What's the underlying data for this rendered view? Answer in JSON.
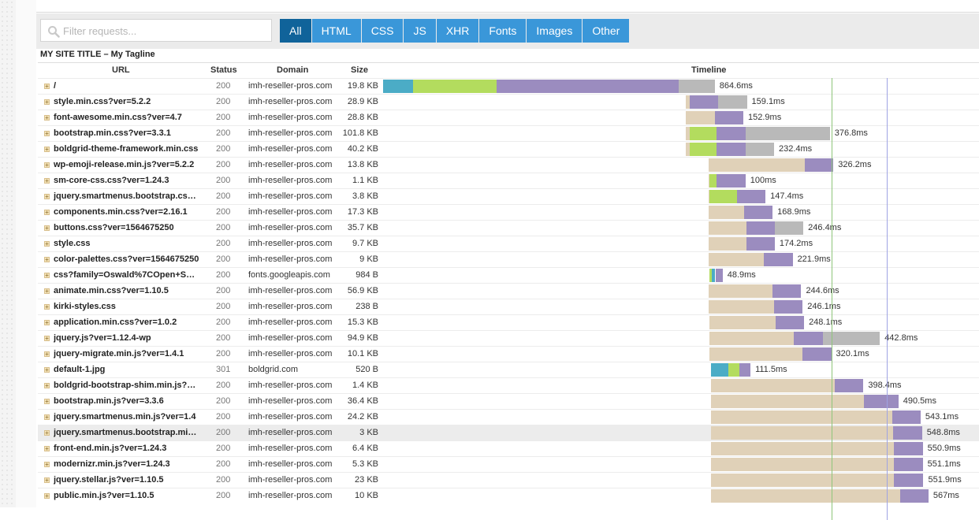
{
  "filter": {
    "placeholder": "Filter requests..."
  },
  "tabs": [
    {
      "label": "All",
      "active": true
    },
    {
      "label": "HTML",
      "active": false
    },
    {
      "label": "CSS",
      "active": false
    },
    {
      "label": "JS",
      "active": false
    },
    {
      "label": "XHR",
      "active": false
    },
    {
      "label": "Fonts",
      "active": false
    },
    {
      "label": "Images",
      "active": false
    },
    {
      "label": "Other",
      "active": false
    }
  ],
  "site_title": "MY SITE TITLE – My Tagline",
  "columns": {
    "url": "URL",
    "status": "Status",
    "domain": "Domain",
    "size": "Size",
    "timeline": "Timeline"
  },
  "colors": {
    "dns": "#4bacc6",
    "connect": "#b3dc5e",
    "blocked": "#e0d1b8",
    "wait": "#9b8cbf",
    "receive": "#b9b9b9",
    "active_tab": "#10639a",
    "tab": "#3a97d9",
    "dom_line": "#8ec57a",
    "load_line": "#9fa3e3"
  },
  "timeline": {
    "total_ms": 1090,
    "dom_loaded_ms": 864,
    "load_ms": 894
  },
  "requests": [
    {
      "url": "/",
      "status": "200",
      "domain": "imh-reseller-pros.com",
      "size": "19.8 KB",
      "duration": "864.6ms",
      "highlight": false,
      "segments": [
        {
          "phase": "dns",
          "start_ms": 0,
          "ms": 42
        },
        {
          "phase": "connect",
          "start_ms": 42,
          "ms": 117
        },
        {
          "phase": "wait",
          "start_ms": 159,
          "ms": 255
        },
        {
          "phase": "receive",
          "start_ms": 414,
          "ms": 50
        }
      ]
    },
    {
      "url": "style.min.css?ver=5.2.2",
      "status": "200",
      "domain": "imh-reseller-pros.com",
      "size": "28.9 KB",
      "duration": "159.1ms",
      "highlight": false,
      "segments": [
        {
          "phase": "blocked",
          "start_ms": 424,
          "ms": 5
        },
        {
          "phase": "wait",
          "start_ms": 429,
          "ms": 40
        },
        {
          "phase": "receive",
          "start_ms": 469,
          "ms": 40
        }
      ]
    },
    {
      "url": "font-awesome.min.css?ver=4.7",
      "status": "200",
      "domain": "imh-reseller-pros.com",
      "size": "28.8 KB",
      "duration": "152.9ms",
      "highlight": false,
      "segments": [
        {
          "phase": "blocked",
          "start_ms": 424,
          "ms": 40
        },
        {
          "phase": "wait",
          "start_ms": 464,
          "ms": 40
        }
      ]
    },
    {
      "url": "bootstrap.min.css?ver=3.3.1",
      "status": "200",
      "domain": "imh-reseller-pros.com",
      "size": "101.8 KB",
      "duration": "376.8ms",
      "highlight": false,
      "segments": [
        {
          "phase": "blocked",
          "start_ms": 424,
          "ms": 5
        },
        {
          "phase": "connect",
          "start_ms": 429,
          "ms": 38
        },
        {
          "phase": "wait",
          "start_ms": 467,
          "ms": 40
        },
        {
          "phase": "receive",
          "start_ms": 507,
          "ms": 118
        }
      ]
    },
    {
      "url": "boldgrid-theme-framework.min.css",
      "status": "200",
      "domain": "imh-reseller-pros.com",
      "size": "40.2 KB",
      "duration": "232.4ms",
      "highlight": false,
      "segments": [
        {
          "phase": "blocked",
          "start_ms": 424,
          "ms": 5
        },
        {
          "phase": "connect",
          "start_ms": 429,
          "ms": 38
        },
        {
          "phase": "wait",
          "start_ms": 467,
          "ms": 40
        },
        {
          "phase": "receive",
          "start_ms": 507,
          "ms": 40
        }
      ]
    },
    {
      "url": "wp-emoji-release.min.js?ver=5.2.2",
      "status": "200",
      "domain": "imh-reseller-pros.com",
      "size": "13.8 KB",
      "duration": "326.2ms",
      "highlight": false,
      "segments": [
        {
          "phase": "blocked",
          "start_ms": 455,
          "ms": 135
        },
        {
          "phase": "wait",
          "start_ms": 590,
          "ms": 40
        }
      ]
    },
    {
      "url": "sm-core-css.css?ver=1.24.3",
      "status": "200",
      "domain": "imh-reseller-pros.com",
      "size": "1.1 KB",
      "duration": "100ms",
      "highlight": false,
      "segments": [
        {
          "phase": "blocked",
          "start_ms": 455,
          "ms": 2
        },
        {
          "phase": "connect",
          "start_ms": 457,
          "ms": 10
        },
        {
          "phase": "wait",
          "start_ms": 467,
          "ms": 40
        }
      ]
    },
    {
      "url": "jquery.smartmenus.bootstrap.css?ver=1.24.3",
      "status": "200",
      "domain": "imh-reseller-pros.com",
      "size": "3.8 KB",
      "duration": "147.4ms",
      "highlight": false,
      "segments": [
        {
          "phase": "blocked",
          "start_ms": 455,
          "ms": 2
        },
        {
          "phase": "connect",
          "start_ms": 457,
          "ms": 38
        },
        {
          "phase": "wait",
          "start_ms": 495,
          "ms": 40
        }
      ]
    },
    {
      "url": "components.min.css?ver=2.16.1",
      "status": "200",
      "domain": "imh-reseller-pros.com",
      "size": "17.3 KB",
      "duration": "168.9ms",
      "highlight": false,
      "segments": [
        {
          "phase": "blocked",
          "start_ms": 455,
          "ms": 50
        },
        {
          "phase": "wait",
          "start_ms": 505,
          "ms": 40
        }
      ]
    },
    {
      "url": "buttons.css?ver=1564675250",
      "status": "200",
      "domain": "imh-reseller-pros.com",
      "size": "35.7 KB",
      "duration": "246.4ms",
      "highlight": false,
      "segments": [
        {
          "phase": "blocked",
          "start_ms": 455,
          "ms": 53
        },
        {
          "phase": "wait",
          "start_ms": 508,
          "ms": 40
        },
        {
          "phase": "receive",
          "start_ms": 548,
          "ms": 40
        }
      ]
    },
    {
      "url": "style.css",
      "status": "200",
      "domain": "imh-reseller-pros.com",
      "size": "9.7 KB",
      "duration": "174.2ms",
      "highlight": false,
      "segments": [
        {
          "phase": "blocked",
          "start_ms": 455,
          "ms": 53
        },
        {
          "phase": "wait",
          "start_ms": 508,
          "ms": 40
        }
      ]
    },
    {
      "url": "color-palettes.css?ver=1564675250",
      "status": "200",
      "domain": "imh-reseller-pros.com",
      "size": "9 KB",
      "duration": "221.9ms",
      "highlight": false,
      "segments": [
        {
          "phase": "blocked",
          "start_ms": 455,
          "ms": 78
        },
        {
          "phase": "wait",
          "start_ms": 533,
          "ms": 40
        }
      ]
    },
    {
      "url": "css?family=Oswald%7COpen+Sans:400,700",
      "status": "200",
      "domain": "fonts.googleapis.com",
      "size": "984 B",
      "duration": "48.9ms",
      "highlight": false,
      "segments": [
        {
          "phase": "connect",
          "start_ms": 457,
          "ms": 3
        },
        {
          "phase": "dns",
          "start_ms": 460,
          "ms": 0
        },
        {
          "phase": "wait",
          "start_ms": 465,
          "ms": 10
        }
      ]
    },
    {
      "url": "animate.min.css?ver=1.10.5",
      "status": "200",
      "domain": "imh-reseller-pros.com",
      "size": "56.9 KB",
      "duration": "244.6ms",
      "highlight": false,
      "segments": [
        {
          "phase": "blocked",
          "start_ms": 455,
          "ms": 90
        },
        {
          "phase": "wait",
          "start_ms": 545,
          "ms": 40
        }
      ]
    },
    {
      "url": "kirki-styles.css",
      "status": "200",
      "domain": "imh-reseller-pros.com",
      "size": "238 B",
      "duration": "246.1ms",
      "highlight": false,
      "segments": [
        {
          "phase": "blocked",
          "start_ms": 455,
          "ms": 92
        },
        {
          "phase": "wait",
          "start_ms": 547,
          "ms": 40
        }
      ]
    },
    {
      "url": "application.min.css?ver=1.0.2",
      "status": "200",
      "domain": "imh-reseller-pros.com",
      "size": "15.3 KB",
      "duration": "248.1ms",
      "highlight": false,
      "segments": [
        {
          "phase": "blocked",
          "start_ms": 457,
          "ms": 92
        },
        {
          "phase": "wait",
          "start_ms": 549,
          "ms": 40
        }
      ]
    },
    {
      "url": "jquery.js?ver=1.12.4-wp",
      "status": "200",
      "domain": "imh-reseller-pros.com",
      "size": "94.9 KB",
      "duration": "442.8ms",
      "highlight": false,
      "segments": [
        {
          "phase": "blocked",
          "start_ms": 457,
          "ms": 118
        },
        {
          "phase": "wait",
          "start_ms": 575,
          "ms": 40
        },
        {
          "phase": "receive",
          "start_ms": 615,
          "ms": 80
        }
      ]
    },
    {
      "url": "jquery-migrate.min.js?ver=1.4.1",
      "status": "200",
      "domain": "imh-reseller-pros.com",
      "size": "10.1 KB",
      "duration": "320.1ms",
      "highlight": false,
      "segments": [
        {
          "phase": "blocked",
          "start_ms": 457,
          "ms": 130
        },
        {
          "phase": "wait",
          "start_ms": 587,
          "ms": 40
        }
      ]
    },
    {
      "url": "default-1.jpg",
      "status": "301",
      "domain": "boldgrid.com",
      "size": "520 B",
      "duration": "111.5ms",
      "highlight": false,
      "segments": [
        {
          "phase": "dns",
          "start_ms": 459,
          "ms": 24
        },
        {
          "phase": "connect",
          "start_ms": 483,
          "ms": 15
        },
        {
          "phase": "wait",
          "start_ms": 498,
          "ms": 16
        }
      ]
    },
    {
      "url": "boldgrid-bootstrap-shim.min.js?ver=2.16.1",
      "status": "200",
      "domain": "imh-reseller-pros.com",
      "size": "1.4 KB",
      "duration": "398.4ms",
      "highlight": false,
      "segments": [
        {
          "phase": "blocked",
          "start_ms": 459,
          "ms": 173
        },
        {
          "phase": "wait",
          "start_ms": 632,
          "ms": 40
        }
      ]
    },
    {
      "url": "bootstrap.min.js?ver=3.3.6",
      "status": "200",
      "domain": "imh-reseller-pros.com",
      "size": "36.4 KB",
      "duration": "490.5ms",
      "highlight": false,
      "segments": [
        {
          "phase": "blocked",
          "start_ms": 459,
          "ms": 214
        },
        {
          "phase": "wait",
          "start_ms": 673,
          "ms": 48
        }
      ]
    },
    {
      "url": "jquery.smartmenus.min.js?ver=1.4",
      "status": "200",
      "domain": "imh-reseller-pros.com",
      "size": "24.2 KB",
      "duration": "543.1ms",
      "highlight": false,
      "segments": [
        {
          "phase": "blocked",
          "start_ms": 459,
          "ms": 253
        },
        {
          "phase": "wait",
          "start_ms": 712,
          "ms": 40
        }
      ]
    },
    {
      "url": "jquery.smartmenus.bootstrap.min.js?ver=1.4",
      "status": "200",
      "domain": "imh-reseller-pros.com",
      "size": "3 KB",
      "duration": "548.8ms",
      "highlight": true,
      "segments": [
        {
          "phase": "blocked",
          "start_ms": 459,
          "ms": 255
        },
        {
          "phase": "wait",
          "start_ms": 714,
          "ms": 40
        }
      ]
    },
    {
      "url": "front-end.min.js?ver=1.24.3",
      "status": "200",
      "domain": "imh-reseller-pros.com",
      "size": "6.4 KB",
      "duration": "550.9ms",
      "highlight": false,
      "segments": [
        {
          "phase": "blocked",
          "start_ms": 459,
          "ms": 256
        },
        {
          "phase": "wait",
          "start_ms": 715,
          "ms": 40
        }
      ]
    },
    {
      "url": "modernizr.min.js?ver=1.24.3",
      "status": "200",
      "domain": "imh-reseller-pros.com",
      "size": "5.3 KB",
      "duration": "551.1ms",
      "highlight": false,
      "segments": [
        {
          "phase": "blocked",
          "start_ms": 459,
          "ms": 256
        },
        {
          "phase": "wait",
          "start_ms": 715,
          "ms": 40
        }
      ]
    },
    {
      "url": "jquery.stellar.js?ver=1.10.5",
      "status": "200",
      "domain": "imh-reseller-pros.com",
      "size": "23 KB",
      "duration": "551.9ms",
      "highlight": false,
      "segments": [
        {
          "phase": "blocked",
          "start_ms": 459,
          "ms": 256
        },
        {
          "phase": "wait",
          "start_ms": 715,
          "ms": 41
        }
      ]
    },
    {
      "url": "public.min.js?ver=1.10.5",
      "status": "200",
      "domain": "imh-reseller-pros.com",
      "size": "10 KB",
      "duration": "567ms",
      "highlight": false,
      "segments": [
        {
          "phase": "blocked",
          "start_ms": 459,
          "ms": 264
        },
        {
          "phase": "wait",
          "start_ms": 723,
          "ms": 40
        }
      ]
    }
  ]
}
